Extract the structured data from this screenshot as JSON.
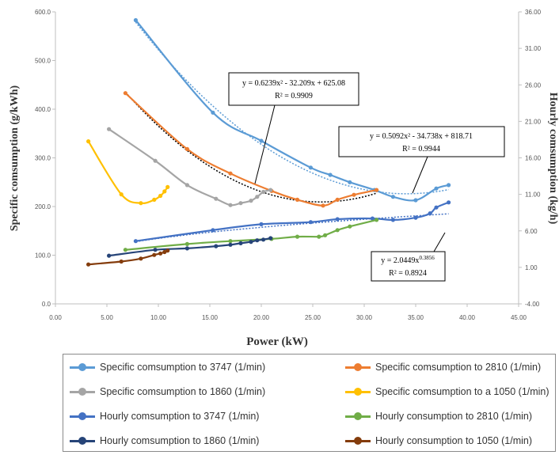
{
  "chart_data": {
    "type": "scatter",
    "title": "",
    "xlabel": "Power (kW)",
    "ylabel_left": "Specific comsumption (g/kWh)",
    "ylabel_right": "Hourly comsumption (kg/h)",
    "xlim": [
      0,
      45
    ],
    "xticks": [
      "0.00",
      "5.00",
      "10.00",
      "15.00",
      "20.00",
      "25.00",
      "30.00",
      "35.00",
      "40.00",
      "45.00"
    ],
    "ylim_left": [
      0,
      600
    ],
    "yticks_left": [
      "0.0",
      "100.0",
      "200.0",
      "300.0",
      "400.0",
      "500.0",
      "600.0"
    ],
    "ylim_right": [
      -4,
      36
    ],
    "yticks_right": [
      "-4.00",
      "1.00",
      "6.00",
      "11.00",
      "16.00",
      "21.00",
      "26.00",
      "31.00",
      "36.00"
    ],
    "legend_position": "bottom",
    "grid": false,
    "series": [
      {
        "name": "Specific comsumption to 3747 (1/min)",
        "axis": "left",
        "color": "#5b9bd5",
        "x": [
          7.8,
          15.3,
          20.0,
          24.8,
          26.7,
          28.6,
          31.0,
          32.8,
          35.0,
          37.0,
          38.2
        ],
        "y": [
          583,
          393,
          335,
          280,
          265,
          250,
          234,
          220,
          213,
          237,
          244
        ]
      },
      {
        "name": "Specific comsumption to 2810 (1/min)",
        "axis": "left",
        "color": "#ed7d31",
        "x": [
          6.8,
          12.8,
          17.0,
          21.0,
          23.5,
          26.0,
          27.4,
          29.0,
          31.2
        ],
        "y": [
          433,
          318,
          268,
          232,
          214,
          202,
          214,
          224,
          234
        ]
      },
      {
        "name": "Specific comsumption to 1860 (1/min)",
        "axis": "left",
        "color": "#a5a5a5",
        "x": [
          5.2,
          9.7,
          12.8,
          15.6,
          17.0,
          18.0,
          19.0,
          19.6,
          20.2,
          20.9
        ],
        "y": [
          359,
          294,
          244,
          216,
          203,
          207,
          212,
          220,
          230,
          234
        ]
      },
      {
        "name": "Specific comsumption to a 1050 (1/min)",
        "axis": "left",
        "color": "#ffc000",
        "x": [
          3.2,
          6.4,
          8.3,
          9.6,
          10.2,
          10.6,
          10.9
        ],
        "y": [
          334,
          225,
          207,
          214,
          222,
          231,
          240
        ]
      },
      {
        "name": "Hourly comsumption to 3747 (1/min)",
        "axis": "right",
        "color": "#4472c4",
        "x": [
          7.8,
          15.3,
          20.0,
          24.8,
          27.4,
          30.8,
          32.8,
          35.0,
          36.4,
          37.0,
          38.2
        ],
        "y": [
          4.6,
          6.1,
          6.9,
          7.2,
          7.6,
          7.7,
          7.5,
          7.8,
          8.4,
          9.2,
          9.9
        ]
      },
      {
        "name": "Hourly consumption to 2810 (1/min)",
        "axis": "right",
        "color": "#70ad47",
        "x": [
          6.8,
          12.8,
          17.0,
          21.0,
          23.5,
          25.6,
          26.2,
          27.4,
          28.6,
          31.2
        ],
        "y": [
          3.4,
          4.2,
          4.6,
          4.9,
          5.2,
          5.2,
          5.4,
          6.1,
          6.6,
          7.5
        ]
      },
      {
        "name": "Hourly comsumption to 1860 (1/min)",
        "axis": "right",
        "color": "#264478",
        "x": [
          5.2,
          9.7,
          12.8,
          15.6,
          17.0,
          18.0,
          19.0,
          19.6,
          20.2,
          20.9
        ],
        "y": [
          2.6,
          3.4,
          3.6,
          3.9,
          4.1,
          4.3,
          4.5,
          4.7,
          4.8,
          5.0
        ]
      },
      {
        "name": "Hourly consumption to 1050 (1/min)",
        "axis": "right",
        "color": "#843c0c",
        "x": [
          3.2,
          6.4,
          8.3,
          9.6,
          10.2,
          10.6,
          10.9
        ],
        "y": [
          1.4,
          1.8,
          2.2,
          2.7,
          2.9,
          3.1,
          3.3
        ]
      }
    ],
    "trendlines": [
      {
        "series": 0,
        "equation": "y = 0.5092x² - 34.738x + 818.71",
        "r2": "R² = 0.9944",
        "color": "#5b9bd5"
      },
      {
        "series": 1,
        "equation": "y = 0.6239x² - 32.209x + 625.08",
        "r2": "R² = 0.9909",
        "color": "#000000"
      },
      {
        "series": 4,
        "equation": "y = 2.0449x^0.3856",
        "r2": "R² = 0.8924",
        "color": "#4472c4"
      }
    ]
  }
}
